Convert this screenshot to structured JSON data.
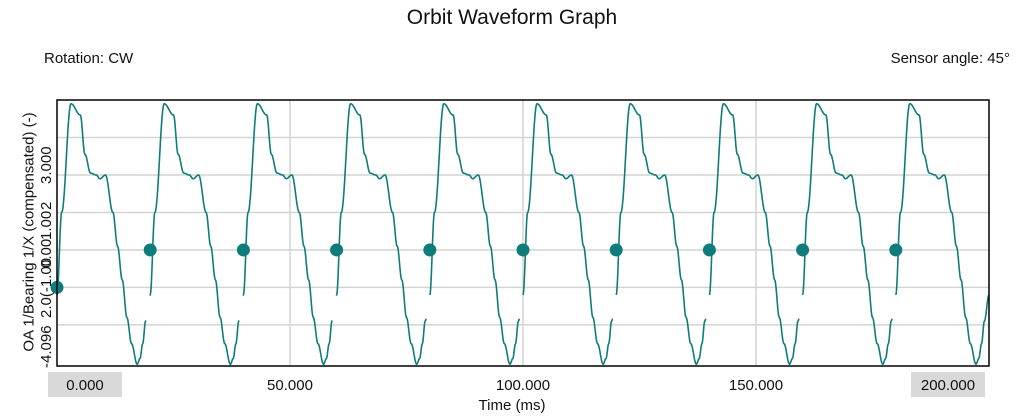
{
  "header": {
    "title": "Orbit Waveform Graph",
    "rotation": "Rotation: CW",
    "sensor_angle": "Sensor angle: 45°"
  },
  "chart_data": {
    "type": "line",
    "title": "Orbit Waveform Graph",
    "xlabel": "Time (ms)",
    "ylabel": "OA 1/Bearing 1/X (compensated) (-)",
    "xlim": [
      0,
      200
    ],
    "ylim": [
      -4.096,
      3.0
    ],
    "grid": true,
    "x_ticks": [
      0,
      50,
      100,
      150,
      200
    ],
    "x_tick_labels": [
      "0.000",
      "50.000",
      "100.000",
      "150.000",
      "200.000"
    ],
    "y_tick_labels": [
      "-4.096",
      "2.0(-1.00",
      "0.00",
      "1.00",
      "2",
      "3.000"
    ],
    "series": [
      {
        "color": "#0f7c7c",
        "period_ms": 20,
        "shape_phase": [
          0,
          0.05,
          0.15,
          0.25,
          0.3,
          0.36,
          0.42,
          0.46,
          0.52,
          0.6,
          0.65,
          0.7,
          0.75,
          0.8,
          0.86,
          0.89,
          0.92,
          0.95,
          1.0
        ],
        "shape_values": [
          -2.2,
          0.0,
          2.9,
          2.6,
          1.55,
          1.05,
          1.0,
          0.9,
          1.0,
          0.0,
          -0.9,
          -1.8,
          -2.8,
          -3.5,
          -4.05,
          -3.9,
          -3.5,
          -2.9,
          -2.2
        ],
        "break_after_ms": [
          19.2,
          39.2,
          59.2,
          79.2,
          99.2,
          119.2,
          139.2,
          159.2,
          179.2
        ],
        "restart_ms": [
          19.9,
          39.9,
          59.9,
          79.9,
          99.9,
          119.9,
          139.9,
          159.9,
          179.9
        ]
      }
    ],
    "markers": {
      "color": "#0f7c7c",
      "points": [
        {
          "x": 0.0,
          "y": -2.0
        },
        {
          "x": 20.0,
          "y": -1.0
        },
        {
          "x": 40.0,
          "y": -1.0
        },
        {
          "x": 60.0,
          "y": -1.0
        },
        {
          "x": 80.0,
          "y": -1.0
        },
        {
          "x": 100.0,
          "y": -1.0
        },
        {
          "x": 120.0,
          "y": -1.0
        },
        {
          "x": 140.0,
          "y": -1.0
        },
        {
          "x": 160.0,
          "y": -1.0
        },
        {
          "x": 180.0,
          "y": -1.0
        }
      ]
    }
  }
}
